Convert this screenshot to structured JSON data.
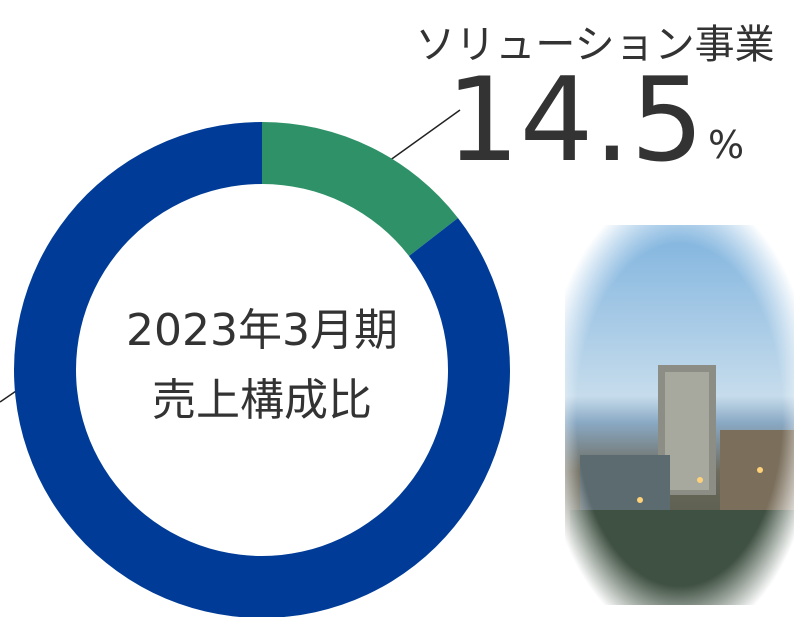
{
  "chart_data": {
    "type": "donut",
    "categories": [
      "ソリューション事業",
      null
    ],
    "values": [
      14.5,
      85.5
    ],
    "value_labels": [
      "14.5",
      null
    ],
    "value_unit": "%",
    "colors": [
      "#2f9168",
      "#003c97"
    ],
    "center_label": [
      "2023年3月期",
      "売上構成比"
    ]
  }
}
